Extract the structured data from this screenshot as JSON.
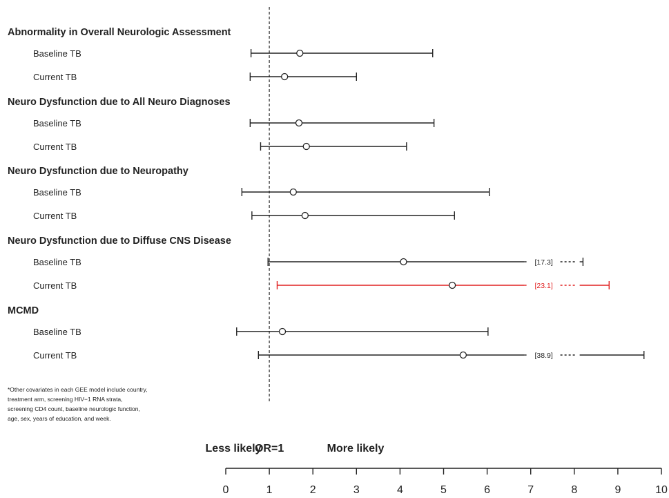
{
  "chart_data": {
    "type": "forest",
    "reference_value": 1,
    "xlim": [
      0,
      10
    ],
    "x_ticks": [
      "0",
      "1",
      "2",
      "3",
      "4",
      "5",
      "6",
      "7",
      "8",
      "9",
      "10"
    ],
    "direction_labels": {
      "left": "Less likely",
      "center": "OR=1",
      "right": "More likely"
    },
    "groups": [
      {
        "title": "Abnormality in Overall Neurologic Assessment",
        "rows": [
          {
            "label": "Baseline TB",
            "or": 1.7,
            "lower": 0.58,
            "upper": 4.75
          },
          {
            "label": "Current TB",
            "or": 1.35,
            "lower": 0.56,
            "upper": 3.0
          }
        ]
      },
      {
        "title": "Neuro Dysfunction due to All Neuro Diagnoses",
        "rows": [
          {
            "label": "Baseline TB",
            "or": 1.68,
            "lower": 0.56,
            "upper": 4.78
          },
          {
            "label": "Current TB",
            "or": 1.85,
            "lower": 0.8,
            "upper": 4.15
          }
        ]
      },
      {
        "title": "Neuro Dysfunction due to Neuropathy",
        "rows": [
          {
            "label": "Baseline TB",
            "or": 1.55,
            "lower": 0.37,
            "upper": 6.05
          },
          {
            "label": "Current TB",
            "or": 1.82,
            "lower": 0.6,
            "upper": 5.25
          }
        ]
      },
      {
        "title": "Neuro Dysfunction due to Diffuse CNS Disease",
        "rows": [
          {
            "label": "Baseline TB",
            "or": 4.08,
            "lower": 0.97,
            "upper": 17.3,
            "upper_label": "[17.3]"
          },
          {
            "label": "Current TB",
            "or": 5.2,
            "lower": 1.18,
            "upper": 23.1,
            "upper_label": "[23.1]",
            "color": "#e02020"
          }
        ]
      },
      {
        "title": "MCMD",
        "rows": [
          {
            "label": "Baseline TB",
            "or": 1.3,
            "lower": 0.25,
            "upper": 6.02
          },
          {
            "label": "Current TB",
            "or": 5.45,
            "lower": 0.75,
            "upper": 38.9,
            "upper_label": "[38.9]"
          }
        ]
      }
    ],
    "footnote": [
      "*Other covariates in each GEE model include country,",
      "treatment arm, screening HIV−1 RNA strata,",
      "screening CD4 count, baseline neurologic function,",
      "age, sex, years of education, and week."
    ]
  }
}
